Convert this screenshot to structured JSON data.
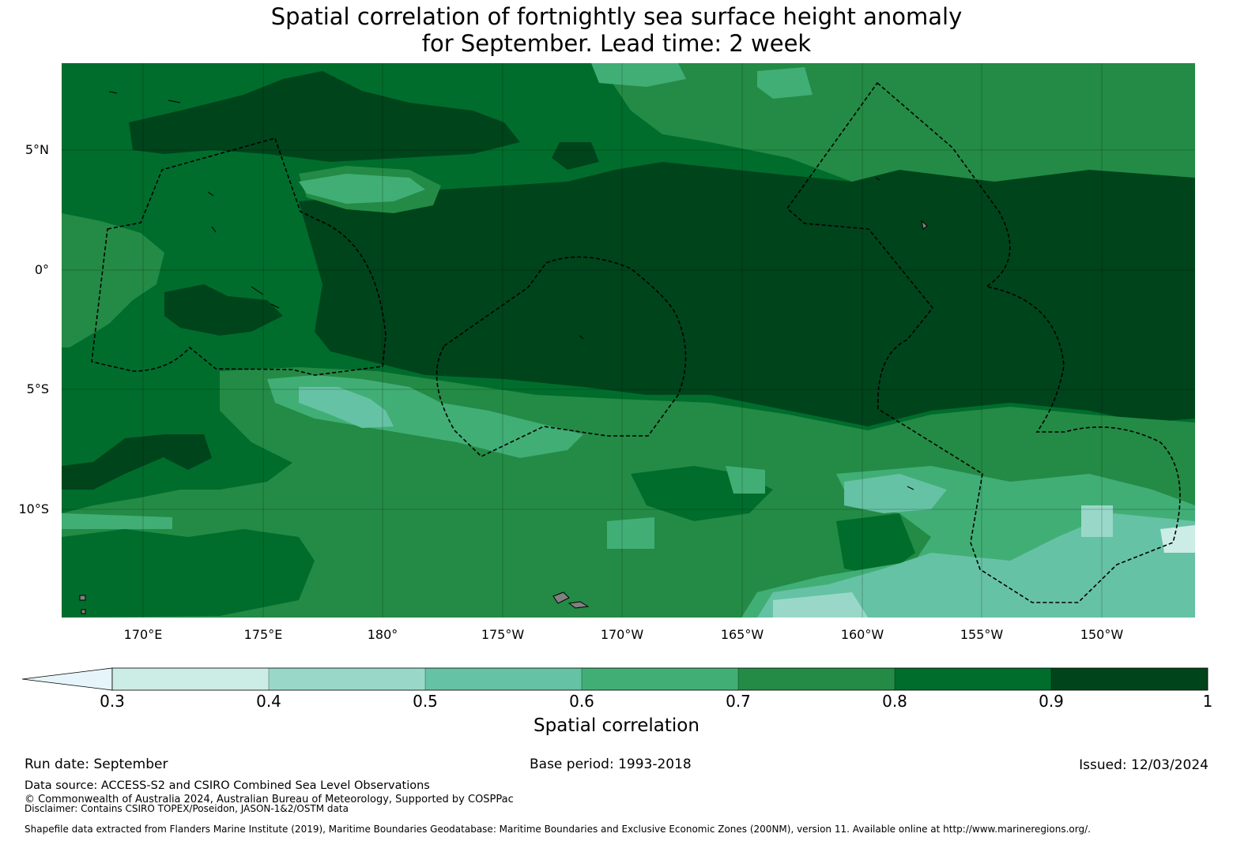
{
  "title": {
    "line1": "Spatial correlation of fortnightly sea surface height anomaly",
    "line2": "for September. Lead time: 2 week"
  },
  "map": {
    "lat_ticks": [
      "5°N",
      "0°",
      "5°S",
      "10°S"
    ],
    "lon_ticks": [
      "170°E",
      "175°E",
      "180°",
      "175°W",
      "170°W",
      "165°W",
      "160°W",
      "155°W",
      "150°W"
    ],
    "land_color": "#808080",
    "boundary_style": "black dashed",
    "gridlines": true
  },
  "colorbar": {
    "title": "Spatial correlation",
    "tick_labels": [
      "0.3",
      "0.4",
      "0.5",
      "0.6",
      "0.7",
      "0.8",
      "0.9",
      "1"
    ],
    "extend": "min",
    "under_color": "#e5f5f9",
    "colors": [
      "#ccece6",
      "#99d8c9",
      "#66c2a4",
      "#41ae76",
      "#238b45",
      "#006d2c",
      "#00441b"
    ]
  },
  "footer": {
    "run_date": "Run date: September",
    "base_period": "Base period: 1993-2018",
    "issued": "Issued: 12/03/2024",
    "data_source": "Data source: ACCESS-S2 and CSIRO Combined Sea Level Observations",
    "copyright": "© Commonwealth of Australia 2024, Australian Bureau of Meteorology, Supported by COSPPac",
    "disclaimer": "Disclaimer: Contains CSIRO TOPEX/Poseidon, JASON-1&2/OSTM data",
    "shapefile": "Shapefile data extracted from Flanders Marine Institute (2019), Maritime Boundaries Geodatabase: Maritime Boundaries and Exclusive Economic Zones (200NM), version 11. Available online at http://www.marineregions.org/."
  }
}
